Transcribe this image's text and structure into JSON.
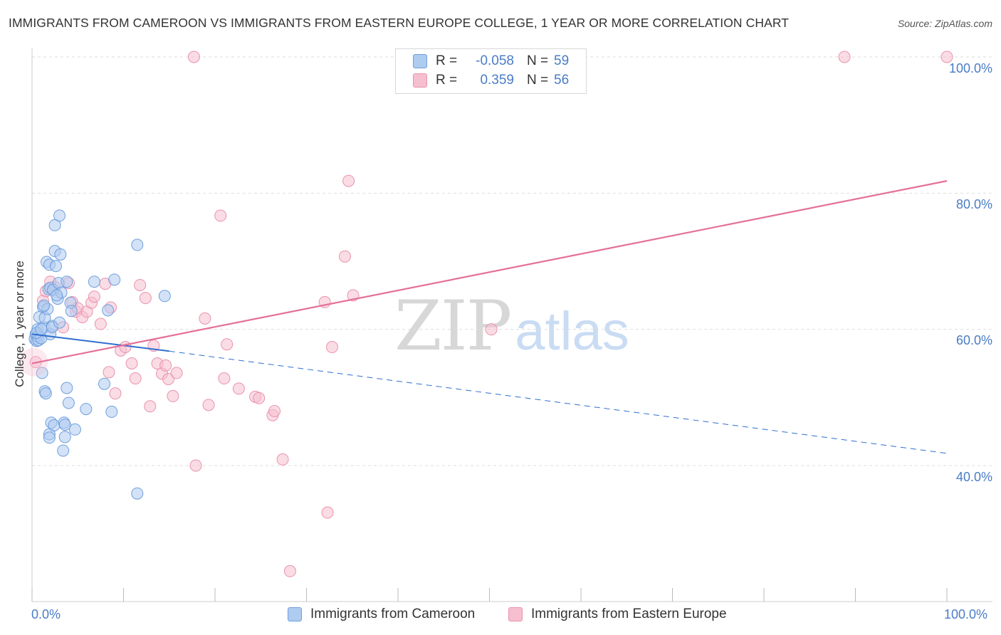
{
  "title": "IMMIGRANTS FROM CAMEROON VS IMMIGRANTS FROM EASTERN EUROPE COLLEGE, 1 YEAR OR MORE CORRELATION CHART",
  "source": "Source: ZipAtlas.com",
  "watermark": {
    "zip": "ZIP",
    "atlas": "atlas"
  },
  "colors": {
    "blue_fill": "#aecbf0",
    "blue_stroke": "#6f9fdc",
    "blue_line": "#2f6fd0",
    "pink_fill": "#f6bfd0",
    "pink_stroke": "#ea92ad",
    "pink_line": "#e56f97",
    "tick_text": "#4a7cc7",
    "grid": "#dddddd"
  },
  "legend": {
    "rows": [
      {
        "r_label": "R =",
        "r_value": "-0.058",
        "n_label": "N =",
        "n_value": "59"
      },
      {
        "r_label": "R =",
        "r_value": "0.359",
        "n_label": "N =",
        "n_value": "56"
      }
    ]
  },
  "y_ticks": [
    "100.0%",
    "80.0%",
    "60.0%",
    "40.0%"
  ],
  "x_ticks": [
    "0.0%",
    "100.0%"
  ],
  "chart_data": {
    "type": "scatter",
    "title": "IMMIGRANTS FROM CAMEROON VS IMMIGRANTS FROM EASTERN EUROPE COLLEGE, 1 YEAR OR MORE CORRELATION CHART",
    "xlabel": "",
    "ylabel": "College, 1 year or more",
    "xlim": [
      0,
      100
    ],
    "ylim": [
      20,
      102
    ],
    "grid": true,
    "legend_position": "bottom",
    "series": [
      {
        "name": "Immigrants from Cameroon",
        "color": "#aecbf0",
        "trend": {
          "x": [
            0,
            15
          ],
          "y": [
            59.3,
            56.8
          ],
          "dashed_extension_to": [
            100,
            41.8
          ]
        },
        "points": [
          [
            0.3,
            58.6
          ],
          [
            0.4,
            59.3
          ],
          [
            0.5,
            58.3
          ],
          [
            0.6,
            60.0
          ],
          [
            0.6,
            59.0
          ],
          [
            0.7,
            58.4
          ],
          [
            0.8,
            61.8
          ],
          [
            1.0,
            58.7
          ],
          [
            1.1,
            53.6
          ],
          [
            1.2,
            63.3
          ],
          [
            1.3,
            60.3
          ],
          [
            1.4,
            61.7
          ],
          [
            1.4,
            50.9
          ],
          [
            1.5,
            50.6
          ],
          [
            1.6,
            69.9
          ],
          [
            1.7,
            63.0
          ],
          [
            1.8,
            65.9
          ],
          [
            1.9,
            69.5
          ],
          [
            1.9,
            44.6
          ],
          [
            1.9,
            44.1
          ],
          [
            2.0,
            66.1
          ],
          [
            2.0,
            59.3
          ],
          [
            2.1,
            46.3
          ],
          [
            2.2,
            60.5
          ],
          [
            2.2,
            60.3
          ],
          [
            2.3,
            65.8
          ],
          [
            2.4,
            45.9
          ],
          [
            2.5,
            75.3
          ],
          [
            2.5,
            71.5
          ],
          [
            2.6,
            69.3
          ],
          [
            2.8,
            64.5
          ],
          [
            2.9,
            66.8
          ],
          [
            3.0,
            76.7
          ],
          [
            3.1,
            71.0
          ],
          [
            3.2,
            65.4
          ],
          [
            3.4,
            42.2
          ],
          [
            3.5,
            46.3
          ],
          [
            3.6,
            46.0
          ],
          [
            3.6,
            44.2
          ],
          [
            3.8,
            67.0
          ],
          [
            3.8,
            51.4
          ],
          [
            4.0,
            49.2
          ],
          [
            4.2,
            63.9
          ],
          [
            4.3,
            62.7
          ],
          [
            4.7,
            45.3
          ],
          [
            5.9,
            48.3
          ],
          [
            6.8,
            67.0
          ],
          [
            7.9,
            52.0
          ],
          [
            8.3,
            62.8
          ],
          [
            8.7,
            47.9
          ],
          [
            9.0,
            67.3
          ],
          [
            11.5,
            72.4
          ],
          [
            11.5,
            35.9
          ],
          [
            14.5,
            64.9
          ],
          [
            0.5,
            59.5
          ],
          [
            1.0,
            60.0
          ],
          [
            2.7,
            65.0
          ],
          [
            1.3,
            63.5
          ],
          [
            3.0,
            61.0
          ]
        ]
      },
      {
        "name": "Immigrants from Eastern Europe",
        "color": "#f6bfd0",
        "trend": {
          "x": [
            0,
            100
          ],
          "y": [
            55.0,
            81.8
          ]
        },
        "points": [
          [
            0.4,
            55.2
          ],
          [
            1.2,
            64.2
          ],
          [
            1.5,
            65.6
          ],
          [
            2.0,
            67.0
          ],
          [
            2.5,
            66.2
          ],
          [
            3.4,
            60.3
          ],
          [
            4.0,
            66.8
          ],
          [
            4.4,
            64.0
          ],
          [
            4.8,
            62.6
          ],
          [
            5.0,
            63.1
          ],
          [
            5.5,
            61.8
          ],
          [
            6.0,
            62.6
          ],
          [
            6.5,
            63.9
          ],
          [
            6.8,
            64.8
          ],
          [
            7.5,
            60.8
          ],
          [
            8.0,
            66.7
          ],
          [
            8.4,
            53.7
          ],
          [
            8.6,
            63.2
          ],
          [
            9.1,
            50.6
          ],
          [
            9.7,
            56.9
          ],
          [
            10.2,
            57.4
          ],
          [
            10.9,
            55.0
          ],
          [
            11.3,
            52.8
          ],
          [
            11.8,
            66.5
          ],
          [
            12.4,
            64.6
          ],
          [
            12.9,
            48.7
          ],
          [
            13.3,
            57.6
          ],
          [
            13.7,
            55.0
          ],
          [
            14.2,
            53.5
          ],
          [
            14.6,
            54.7
          ],
          [
            14.9,
            52.7
          ],
          [
            15.4,
            50.2
          ],
          [
            15.8,
            53.6
          ],
          [
            17.9,
            40.0
          ],
          [
            18.9,
            61.6
          ],
          [
            19.3,
            48.9
          ],
          [
            20.6,
            76.7
          ],
          [
            21.0,
            52.8
          ],
          [
            21.3,
            57.8
          ],
          [
            22.6,
            51.3
          ],
          [
            24.4,
            50.1
          ],
          [
            24.8,
            49.9
          ],
          [
            26.3,
            47.4
          ],
          [
            26.5,
            48.0
          ],
          [
            27.4,
            40.9
          ],
          [
            28.2,
            24.5
          ],
          [
            32.0,
            64.0
          ],
          [
            32.3,
            33.1
          ],
          [
            32.8,
            57.4
          ],
          [
            34.2,
            70.7
          ],
          [
            34.6,
            81.8
          ],
          [
            35.1,
            65.0
          ],
          [
            50.2,
            60.0
          ],
          [
            17.7,
            100.0
          ],
          [
            88.8,
            100.0
          ],
          [
            100.0,
            100.0
          ]
        ]
      }
    ]
  }
}
